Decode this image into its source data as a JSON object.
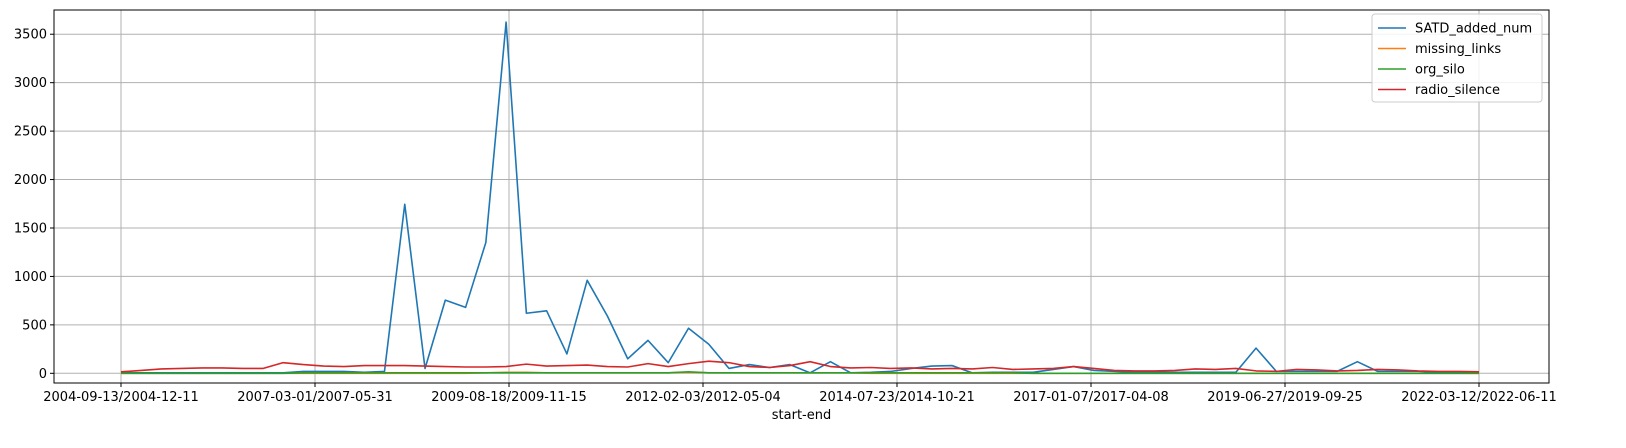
{
  "chart_data": {
    "type": "line",
    "xlabel": "start-end",
    "ylabel": "",
    "ylim": [
      -100,
      3750
    ],
    "grid": true,
    "legend_position": "top-right",
    "x_tick_labels": [
      "2004-09-13/2004-12-11",
      "2007-03-01/2007-05-31",
      "2009-08-18/2009-11-15",
      "2012-02-03/2012-05-04",
      "2014-07-23/2014-10-21",
      "2017-01-07/2017-04-08",
      "2019-06-27/2019-09-25",
      "2022-03-12/2022-06-11"
    ],
    "y_ticks": [
      0,
      500,
      1000,
      1500,
      2000,
      2500,
      3000,
      3500
    ],
    "series": [
      {
        "name": "SATD_added_num",
        "color": "#1f77b4",
        "values": [
          5,
          5,
          5,
          5,
          5,
          5,
          5,
          5,
          5,
          20,
          20,
          20,
          10,
          20,
          1745,
          50,
          755,
          680,
          1350,
          3625,
          620,
          645,
          200,
          960,
          590,
          150,
          340,
          110,
          465,
          300,
          50,
          90,
          60,
          90,
          5,
          120,
          5,
          10,
          20,
          50,
          75,
          80,
          5,
          10,
          10,
          10,
          40,
          70,
          30,
          20,
          10,
          10,
          10,
          10,
          10,
          10,
          260,
          20,
          20,
          20,
          20,
          120,
          20,
          20,
          20,
          10,
          10,
          5
        ]
      },
      {
        "name": "missing_links",
        "color": "#ff7f0e",
        "values": [
          0,
          0,
          0,
          0,
          0,
          0,
          0,
          0,
          0,
          0,
          0,
          0,
          0,
          0,
          0,
          0,
          0,
          0,
          5,
          10,
          10,
          5,
          5,
          5,
          5,
          5,
          5,
          5,
          10,
          5,
          5,
          5,
          5,
          5,
          5,
          5,
          5,
          0,
          0,
          0,
          0,
          0,
          0,
          0,
          0,
          0,
          0,
          0,
          0,
          0,
          0,
          0,
          0,
          0,
          0,
          0,
          0,
          0,
          0,
          0,
          0,
          0,
          0,
          0,
          0,
          0,
          0,
          0
        ]
      },
      {
        "name": "org_silo",
        "color": "#2ca02c",
        "values": [
          0,
          0,
          0,
          0,
          0,
          0,
          0,
          0,
          0,
          5,
          5,
          5,
          5,
          5,
          5,
          5,
          5,
          5,
          5,
          5,
          5,
          5,
          5,
          5,
          5,
          5,
          5,
          5,
          15,
          5,
          5,
          5,
          5,
          5,
          5,
          5,
          5,
          5,
          5,
          5,
          5,
          5,
          5,
          5,
          5,
          0,
          0,
          0,
          0,
          0,
          0,
          0,
          0,
          0,
          0,
          0,
          0,
          0,
          0,
          0,
          0,
          0,
          0,
          0,
          0,
          0,
          0,
          0
        ]
      },
      {
        "name": "radio_silence",
        "color": "#d62728",
        "values": [
          15,
          30,
          45,
          50,
          55,
          55,
          50,
          50,
          110,
          90,
          75,
          70,
          80,
          80,
          80,
          75,
          70,
          65,
          65,
          70,
          95,
          75,
          80,
          85,
          70,
          65,
          100,
          70,
          100,
          125,
          110,
          70,
          60,
          80,
          120,
          70,
          55,
          60,
          50,
          55,
          45,
          50,
          45,
          60,
          40,
          45,
          50,
          70,
          50,
          30,
          25,
          25,
          30,
          45,
          40,
          50,
          25,
          20,
          40,
          35,
          25,
          30,
          40,
          35,
          25,
          20,
          20,
          15
        ]
      }
    ]
  }
}
